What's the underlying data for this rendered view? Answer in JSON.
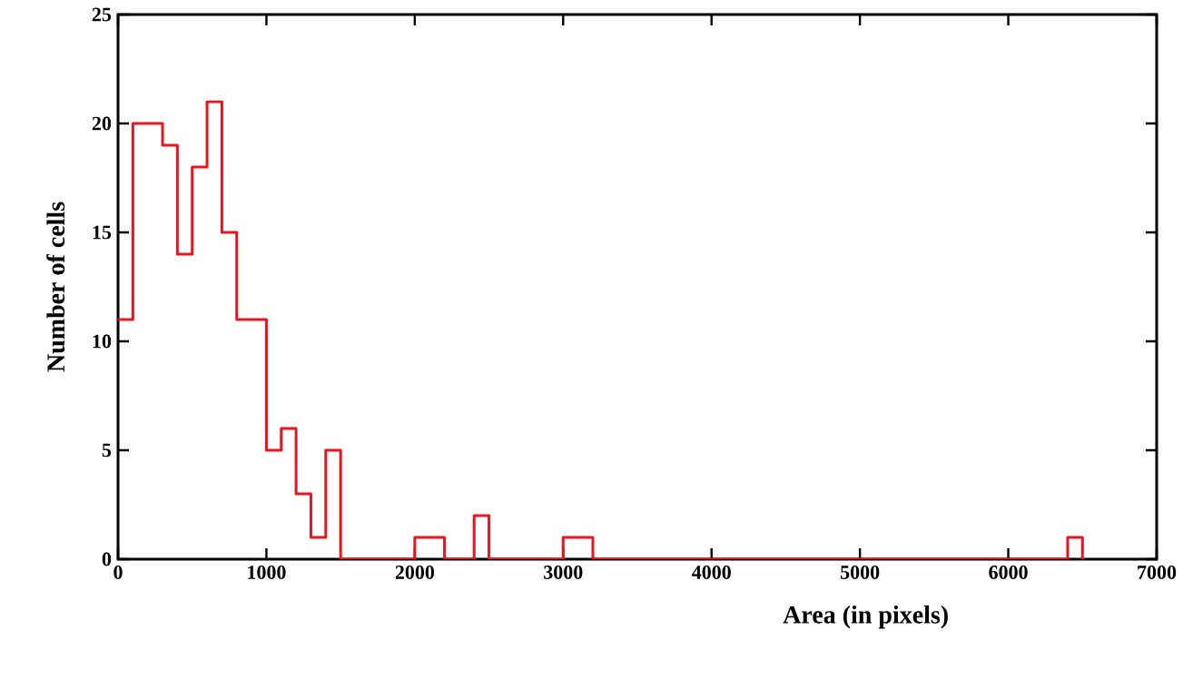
{
  "chart_data": {
    "type": "histogram",
    "xlabel": "Area (in pixels)",
    "ylabel": "Number of cells",
    "color": "#e8141e",
    "bins": [
      0,
      100,
      200,
      300,
      400,
      500,
      600,
      700,
      800,
      900,
      1000,
      1100,
      1200,
      1300,
      1400,
      1500,
      1600,
      1700,
      1800,
      1900,
      2000,
      2100,
      2200,
      2300,
      2400,
      2500,
      2600,
      2700,
      2800,
      2900,
      3000,
      3100,
      3200,
      3300,
      3400,
      3500,
      3600,
      3700,
      3800,
      3900,
      4000,
      4100,
      4200,
      4300,
      4400,
      4500,
      4600,
      4700,
      4800,
      4900,
      5000,
      5100,
      5200,
      5300,
      5400,
      5500,
      5600,
      5700,
      5800,
      5900,
      6000,
      6100,
      6200,
      6300,
      6400,
      6500
    ],
    "values": [
      11,
      20,
      20,
      19,
      14,
      18,
      21,
      15,
      11,
      11,
      5,
      6,
      3,
      1,
      5,
      0,
      0,
      0,
      0,
      0,
      1,
      1,
      0,
      0,
      2,
      0,
      0,
      0,
      0,
      0,
      1,
      1,
      0,
      0,
      0,
      0,
      0,
      0,
      0,
      0,
      0,
      0,
      0,
      0,
      0,
      0,
      0,
      0,
      0,
      0,
      0,
      0,
      0,
      0,
      0,
      0,
      0,
      0,
      0,
      0,
      0,
      0,
      0,
      0,
      1
    ],
    "xlim": [
      0,
      7000
    ],
    "xticks": [
      0,
      1000,
      2000,
      3000,
      4000,
      5000,
      6000,
      7000
    ],
    "ylim": [
      0,
      25
    ],
    "yticks": [
      0,
      5,
      10,
      15,
      20,
      25
    ],
    "grid": false
  }
}
